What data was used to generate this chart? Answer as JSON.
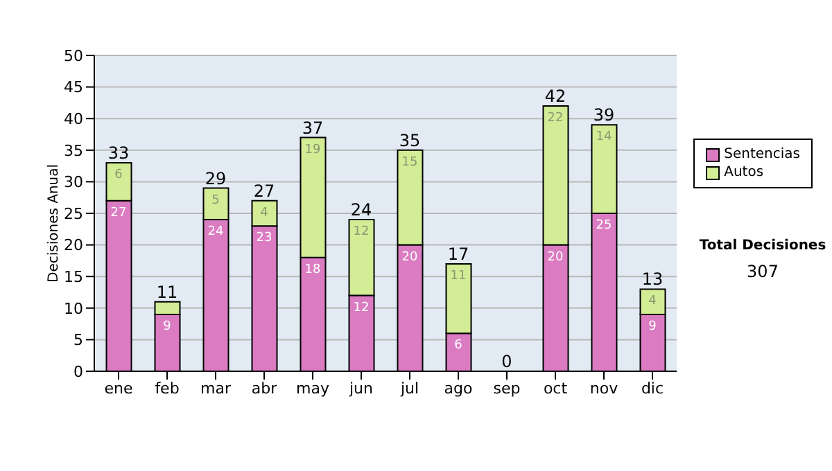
{
  "chart_data": {
    "type": "bar",
    "stacked": true,
    "ylabel": "Decisiones Anual",
    "categories": [
      "ene",
      "feb",
      "mar",
      "abr",
      "may",
      "jun",
      "jul",
      "ago",
      "sep",
      "oct",
      "nov",
      "dic"
    ],
    "series": [
      {
        "name": "Sentencias",
        "color": "#db7cc2",
        "values": [
          27,
          9,
          24,
          23,
          18,
          12,
          20,
          6,
          0,
          20,
          25,
          9
        ],
        "value_labels": [
          "27",
          "9",
          "24",
          "23",
          "18",
          "12",
          "20",
          "6",
          null,
          "20",
          "25",
          "9"
        ]
      },
      {
        "name": "Autos",
        "color": "#d3ec96",
        "values": [
          6,
          2,
          5,
          4,
          19,
          12,
          15,
          11,
          0,
          22,
          14,
          4
        ],
        "value_labels": [
          "6",
          null,
          "5",
          "4",
          "19",
          "12",
          "15",
          "11",
          null,
          "22",
          "14",
          "4"
        ]
      }
    ],
    "totals": [
      "33",
      "11",
      "29",
      "27",
      "37",
      "24",
      "35",
      "17",
      "0",
      "42",
      "39",
      "13"
    ],
    "ylim": [
      0,
      50
    ],
    "yticks": [
      0,
      5,
      10,
      15,
      20,
      25,
      30,
      35,
      40,
      45,
      50
    ],
    "grid": "y",
    "legend": "right",
    "annotations": [
      "Total Decisiones",
      "307"
    ]
  }
}
